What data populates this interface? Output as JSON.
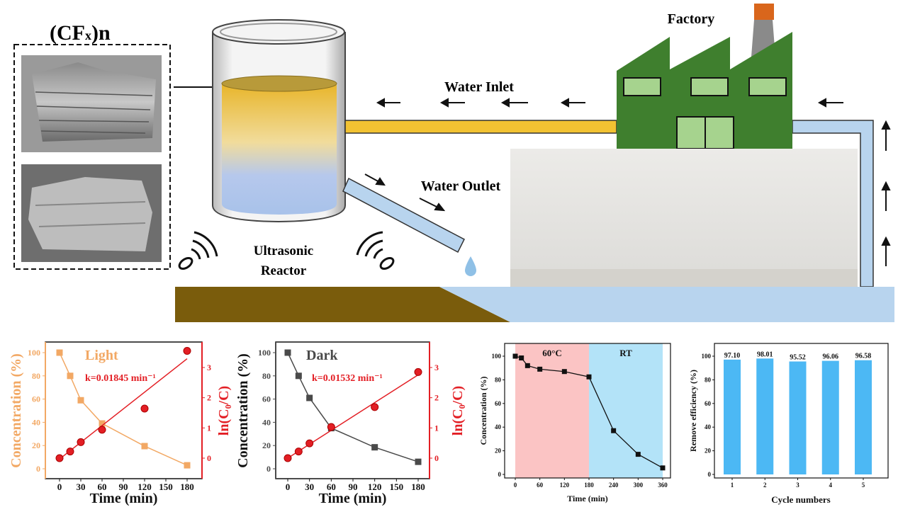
{
  "diagram": {
    "material_label": {
      "main": "(CF",
      "sub": "x",
      "end": ")n"
    },
    "factory_label": "Factory",
    "water_inlet_label": "Water Inlet",
    "water_outlet_label": "Water Outlet",
    "reactor_label_line1": "Ultrasonic",
    "reactor_label_line2": "Reactor",
    "icons": [
      "sem-image",
      "ultrasonic-reactor",
      "factory",
      "flow-arrow",
      "sound-wave",
      "water-drop",
      "cuvette-photo"
    ]
  },
  "colors": {
    "light_series": "#f2a864",
    "fit_red": "#e31e24",
    "dark_series": "#4a4a4a",
    "region_60c": "#fbc4c4",
    "region_rt": "#b3e3f8",
    "bar": "#4cb8f4",
    "inlet_pipe": "#f2c232",
    "outlet_pipe": "#b8d4ee",
    "factory": "#3f7f2e",
    "ground": "#7a5c0c"
  },
  "chart_data": [
    {
      "type": "line",
      "label": "Light",
      "annotation": "k=0.01845 min⁻¹",
      "xlabel": "Time (min)",
      "ylabel": "Concentration (%)",
      "y2label": "ln(C₀/C)",
      "xticks": [
        0,
        30,
        60,
        90,
        120,
        150,
        180
      ],
      "yticks": [
        0,
        20,
        40,
        60,
        80,
        100
      ],
      "y2ticks": [
        0,
        1,
        2,
        3
      ],
      "xlim": [
        0,
        180
      ],
      "ylim": [
        0,
        100
      ],
      "y2lim": [
        0,
        3
      ],
      "concentration": {
        "x": [
          0,
          15,
          30,
          60,
          120,
          180
        ],
        "y": [
          100,
          80,
          59,
          39,
          19.5,
          3
        ]
      },
      "ln_ratio": {
        "x": [
          0,
          15,
          30,
          60,
          120,
          180
        ],
        "y": [
          0,
          0.22,
          0.53,
          0.94,
          1.64,
          3.55
        ]
      },
      "fit": {
        "slope": 0.01845,
        "intercept": -0.03
      }
    },
    {
      "type": "line",
      "label": "Dark",
      "annotation": "k=0.01532 min⁻¹",
      "xlabel": "Time (min)",
      "ylabel": "Concentration (%)",
      "y2label": "ln(C₀/C)",
      "xticks": [
        0,
        30,
        60,
        90,
        120,
        150,
        180
      ],
      "yticks": [
        0,
        20,
        40,
        60,
        80,
        100
      ],
      "y2ticks": [
        0,
        1,
        2,
        3
      ],
      "xlim": [
        0,
        180
      ],
      "ylim": [
        0,
        100
      ],
      "y2lim": [
        0,
        3
      ],
      "concentration": {
        "x": [
          0,
          15,
          30,
          60,
          120,
          180
        ],
        "y": [
          100,
          80,
          61,
          35,
          18.5,
          6
        ]
      },
      "ln_ratio": {
        "x": [
          0,
          15,
          30,
          60,
          120,
          180
        ],
        "y": [
          0,
          0.22,
          0.49,
          1.03,
          1.69,
          2.85
        ]
      },
      "fit": {
        "slope": 0.01532,
        "intercept": 0
      }
    },
    {
      "type": "line",
      "xlabel": "Time (min)",
      "ylabel": "Concentration (%)",
      "regions": [
        {
          "label": "60°C",
          "from": 0,
          "to": 180
        },
        {
          "label": "RT",
          "from": 180,
          "to": 360
        }
      ],
      "xticks": [
        0,
        60,
        120,
        180,
        240,
        300,
        360
      ],
      "yticks": [
        0,
        20,
        40,
        60,
        80,
        100
      ],
      "xlim": [
        0,
        360
      ],
      "ylim": [
        0,
        100
      ],
      "x": [
        0,
        15,
        30,
        60,
        120,
        180,
        240,
        300,
        360
      ],
      "y": [
        100,
        98.5,
        92,
        89,
        87,
        82.5,
        37,
        17,
        5.5
      ]
    },
    {
      "type": "bar",
      "xlabel": "Cycle numbers",
      "ylabel": "Remove efficiency (%)",
      "categories": [
        "1",
        "2",
        "3",
        "4",
        "5"
      ],
      "values": [
        97.1,
        98.01,
        95.52,
        96.06,
        96.58
      ],
      "value_labels": [
        "97.10",
        "98.01",
        "95.52",
        "96.06",
        "96.58"
      ],
      "yticks": [
        0,
        20,
        40,
        60,
        80,
        100
      ],
      "ylim": [
        0,
        100
      ]
    }
  ]
}
